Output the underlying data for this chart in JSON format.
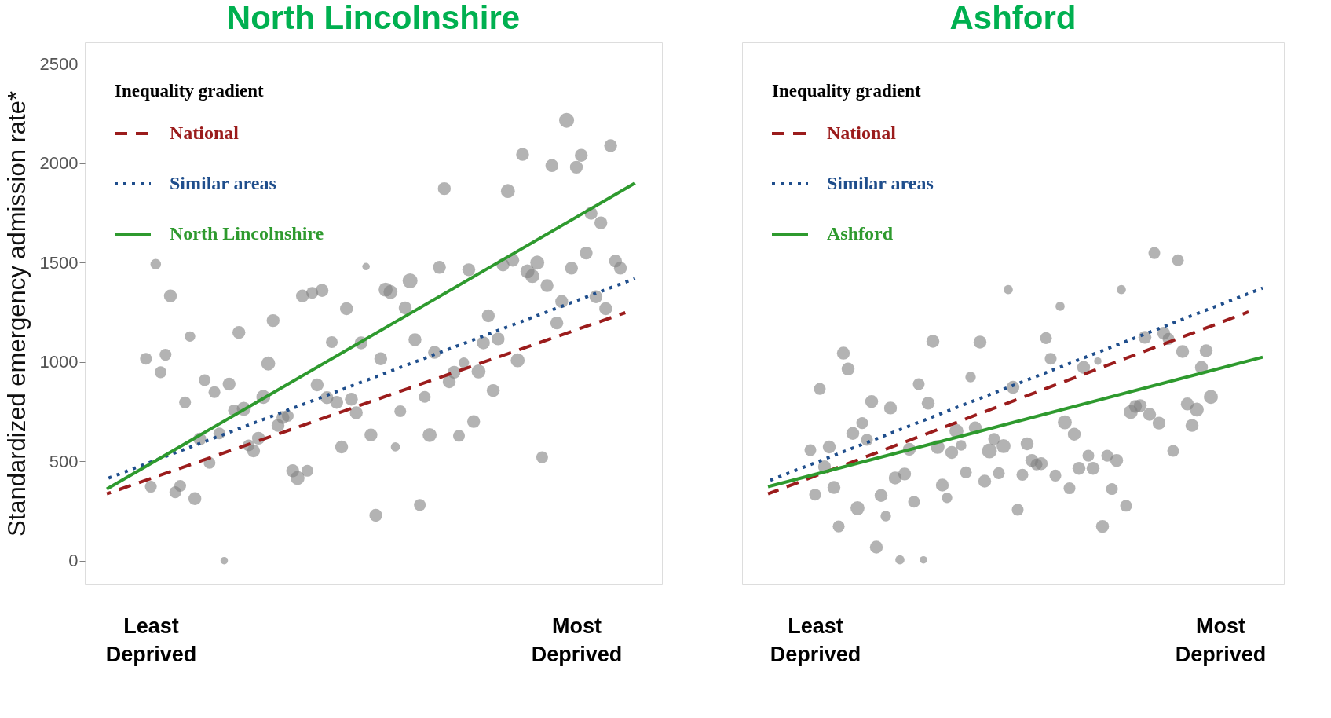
{
  "chart_data": [
    {
      "type": "bubble",
      "title": "North Lincolnshire",
      "ylabel": "Standardized emergency admission rate*",
      "legend_title": "Inequality gradient",
      "legend": "top left",
      "categories": [
        null,
        null,
        null,
        null,
        null,
        null,
        null,
        null,
        null,
        null,
        null,
        null,
        null,
        "Least Deprived",
        null,
        null,
        null,
        null,
        null,
        null,
        null,
        null,
        null,
        null,
        null,
        null,
        null,
        null,
        null,
        null,
        null,
        null,
        null,
        null,
        null,
        null,
        null,
        null,
        null,
        null,
        null,
        null,
        null,
        null,
        null,
        null,
        null,
        null,
        null,
        null,
        null,
        null,
        null,
        null,
        null,
        null,
        null,
        null,
        null,
        null,
        null,
        null,
        null,
        null,
        null,
        null,
        null,
        null,
        null,
        null,
        null,
        null,
        null,
        null,
        null,
        null,
        null,
        null,
        null,
        null,
        null,
        null,
        null,
        null,
        null,
        null,
        null,
        null,
        null,
        null,
        null,
        null,
        null,
        null,
        null,
        null,
        null,
        null,
        null,
        null,
        "Most Deprived",
        null,
        null,
        null,
        null,
        null,
        null,
        null,
        null,
        null,
        null,
        null,
        null,
        null,
        null,
        null,
        null,
        null
      ],
      "ylim": [
        -120,
        2608
      ],
      "yticks": [
        0,
        500,
        1000,
        1500,
        2000,
        2500
      ],
      "grid": false,
      "series": [
        {
          "type": "bubble",
          "color": "#808080",
          "marker": "circle",
          "values": [
            null,
            null,
            null,
            null,
            null,
            null,
            null,
            null,
            null,
            null,
            null,
            null,
            1016,
            372,
            1492,
            948,
            1036,
            1332,
            344,
            376,
            796,
            1128,
            312,
            612,
            908,
            492,
            848,
            640,
            0,
            888,
            756,
            1148,
            764,
            580,
            552,
            616,
            824,
            992,
            1208,
            680,
            720,
            728,
            452,
            416,
            1332,
            452,
            1348,
            884,
            1360,
            820,
            1100,
            796,
            572,
            1268,
            812,
            744,
            1096,
            1480,
            632,
            228,
            1016,
            1364,
            1352,
            572,
            752,
            1272,
            1408,
            1112,
            280,
            824,
            632,
            1048,
            1476,
            1872,
            900,
            948,
            628,
            996,
            1464,
            700,
            952,
            1096,
            1232,
            856,
            1116,
            1488,
            1860,
            1512,
            1008,
            2044,
            1456,
            1432,
            1500,
            520,
            1384,
            1988,
            1196,
            1304,
            2216,
            1472,
            1980,
            2040,
            1548,
            1748,
            1328,
            1700,
            1268,
            2088,
            1508,
            1472,
            null,
            null,
            null,
            null,
            null,
            null,
            null,
            null
          ],
          "sizes": [
            null,
            null,
            null,
            null,
            null,
            null,
            null,
            null,
            null,
            null,
            null,
            null,
            0.63,
            0.63,
            0.5,
            0.63,
            0.63,
            0.75,
            0.63,
            0.63,
            0.63,
            0.5,
            0.75,
            0.75,
            0.63,
            0.63,
            0.63,
            0.63,
            0.25,
            0.75,
            0.63,
            0.75,
            0.88,
            0.63,
            0.75,
            0.75,
            0.88,
            0.88,
            0.75,
            0.75,
            0.75,
            0.63,
            0.75,
            0.88,
            0.75,
            0.63,
            0.63,
            0.75,
            0.75,
            0.75,
            0.63,
            0.75,
            0.75,
            0.75,
            0.75,
            0.75,
            0.75,
            0.25,
            0.75,
            0.75,
            0.75,
            0.88,
            0.88,
            0.38,
            0.63,
            0.75,
            1,
            0.75,
            0.63,
            0.63,
            0.88,
            0.75,
            0.75,
            0.75,
            0.75,
            0.75,
            0.63,
            0.5,
            0.75,
            0.75,
            0.88,
            0.75,
            0.75,
            0.75,
            0.75,
            0.75,
            0.88,
            0.75,
            0.88,
            0.75,
            0.88,
            0.88,
            0.88,
            0.63,
            0.75,
            0.75,
            0.75,
            0.75,
            1,
            0.75,
            0.75,
            0.75,
            0.75,
            0.75,
            0.75,
            0.75,
            0.75,
            0.75,
            0.75,
            0.75,
            null,
            null,
            null,
            null,
            null,
            null,
            null,
            null
          ]
        },
        {
          "type": "line",
          "name": "National",
          "color": "#9b1c1c",
          "line_style": "dashed",
          "values": [
            null,
            null,
            null,
            null,
            336,
            null,
            null,
            null,
            null,
            null,
            null,
            null,
            null,
            null,
            null,
            null,
            null,
            null,
            null,
            null,
            null,
            null,
            null,
            null,
            null,
            null,
            null,
            null,
            null,
            null,
            null,
            null,
            null,
            null,
            null,
            null,
            null,
            null,
            null,
            null,
            null,
            null,
            null,
            null,
            null,
            null,
            null,
            null,
            null,
            null,
            null,
            null,
            null,
            null,
            null,
            null,
            null,
            null,
            null,
            null,
            null,
            null,
            null,
            null,
            null,
            null,
            null,
            null,
            null,
            null,
            null,
            null,
            null,
            null,
            null,
            null,
            null,
            null,
            null,
            null,
            null,
            null,
            null,
            null,
            null,
            null,
            null,
            null,
            null,
            null,
            null,
            null,
            null,
            null,
            null,
            null,
            null,
            null,
            null,
            null,
            null,
            null,
            null,
            null,
            null,
            null,
            null,
            null,
            null,
            null,
            1248,
            null,
            null,
            null,
            null,
            null,
            null,
            null
          ]
        },
        {
          "type": "line",
          "name": "Similar areas",
          "color": "#1f4e8c",
          "line_style": "dotted",
          "values": [
            null,
            null,
            null,
            null,
            412,
            null,
            null,
            null,
            null,
            null,
            null,
            null,
            null,
            null,
            null,
            null,
            null,
            null,
            null,
            null,
            null,
            null,
            null,
            null,
            null,
            null,
            null,
            null,
            null,
            null,
            null,
            null,
            null,
            null,
            null,
            null,
            null,
            null,
            null,
            null,
            null,
            null,
            null,
            null,
            null,
            null,
            null,
            null,
            null,
            null,
            null,
            null,
            null,
            null,
            null,
            null,
            null,
            null,
            null,
            null,
            null,
            null,
            null,
            null,
            null,
            null,
            null,
            null,
            null,
            null,
            null,
            null,
            null,
            null,
            null,
            null,
            null,
            null,
            null,
            null,
            null,
            null,
            null,
            null,
            null,
            null,
            null,
            null,
            null,
            null,
            null,
            null,
            null,
            null,
            null,
            null,
            null,
            null,
            null,
            null,
            null,
            null,
            null,
            null,
            null,
            null,
            null,
            null,
            null,
            null,
            null,
            null,
            1420,
            null,
            null,
            null,
            null,
            null
          ]
        },
        {
          "type": "line",
          "name": "North Lincolnshire",
          "color": "#2e9a2e",
          "line_style": "solid",
          "values": [
            null,
            null,
            null,
            null,
            360,
            null,
            null,
            null,
            null,
            null,
            null,
            null,
            null,
            null,
            null,
            null,
            null,
            null,
            null,
            null,
            null,
            null,
            null,
            null,
            null,
            null,
            null,
            null,
            null,
            null,
            null,
            null,
            null,
            null,
            null,
            null,
            null,
            null,
            null,
            null,
            null,
            null,
            null,
            null,
            null,
            null,
            null,
            null,
            null,
            null,
            null,
            null,
            null,
            null,
            null,
            null,
            null,
            null,
            null,
            null,
            null,
            null,
            null,
            null,
            null,
            null,
            null,
            null,
            null,
            null,
            null,
            null,
            null,
            null,
            null,
            null,
            null,
            null,
            null,
            null,
            null,
            null,
            null,
            null,
            null,
            null,
            null,
            null,
            null,
            null,
            null,
            null,
            null,
            null,
            null,
            null,
            null,
            null,
            null,
            null,
            null,
            null,
            null,
            null,
            null,
            null,
            null,
            null,
            null,
            null,
            null,
            null,
            1900,
            null,
            null,
            null,
            null,
            null
          ]
        }
      ]
    },
    {
      "type": "bubble",
      "title": "Ashford",
      "legend_title": "Inequality gradient",
      "legend": "top left",
      "tick_labels": "x",
      "categories": [
        null,
        null,
        null,
        null,
        null,
        null,
        null,
        null,
        null,
        null,
        null,
        null,
        null,
        null,
        null,
        "Least Deprived",
        null,
        null,
        null,
        null,
        null,
        null,
        null,
        null,
        null,
        null,
        null,
        null,
        null,
        null,
        null,
        null,
        null,
        null,
        null,
        null,
        null,
        null,
        null,
        null,
        null,
        null,
        null,
        null,
        null,
        null,
        null,
        null,
        null,
        null,
        null,
        null,
        null,
        null,
        null,
        null,
        null,
        null,
        null,
        null,
        null,
        null,
        null,
        null,
        null,
        null,
        null,
        null,
        null,
        null,
        null,
        null,
        null,
        null,
        null,
        null,
        null,
        null,
        null,
        null,
        null,
        null,
        null,
        null,
        null,
        null,
        null,
        null,
        null,
        null,
        null,
        null,
        null,
        null,
        null,
        null,
        null,
        null,
        null,
        null,
        null,
        "Most Deprived",
        null,
        null,
        null,
        null,
        null,
        null,
        null,
        null,
        null,
        null,
        null,
        null,
        null
      ],
      "ylim": [
        -120,
        2608
      ],
      "grid": false,
      "series": [
        {
          "type": "bubble",
          "color": "#808080",
          "marker": "circle",
          "values": [
            null,
            null,
            null,
            null,
            null,
            null,
            null,
            null,
            null,
            null,
            null,
            null,
            null,
            null,
            556,
            332,
            864,
            472,
            572,
            368,
            172,
            1044,
            964,
            640,
            264,
            692,
            608,
            800,
            68,
            328,
            224,
            768,
            416,
            4,
            436,
            560,
            296,
            888,
            4,
            792,
            1104,
            572,
            380,
            316,
            544,
            652,
            580,
            444,
            924,
            668,
            1100,
            400,
            552,
            612,
            440,
            576,
            1364,
            872,
            256,
            432,
            588,
            504,
            484,
            488,
            1120,
            1016,
            428,
            1280,
            696,
            364,
            636,
            464,
            972,
            528,
            464,
            1004,
            172,
            528,
            360,
            504,
            1364,
            276,
            748,
            776,
            780,
            1124,
            736,
            1548,
            692,
            1144,
            1116,
            552,
            1512,
            1052,
            788,
            680,
            760,
            972,
            1056,
            824,
            null,
            null,
            null,
            null,
            null,
            null,
            null,
            null,
            null,
            null,
            null,
            null,
            null,
            null,
            null
          ],
          "sizes": [
            null,
            null,
            null,
            null,
            null,
            null,
            null,
            null,
            null,
            null,
            null,
            null,
            null,
            null,
            0.63,
            0.63,
            0.63,
            0.75,
            0.75,
            0.75,
            0.63,
            0.75,
            0.75,
            0.75,
            0.88,
            0.63,
            0.63,
            0.75,
            0.75,
            0.75,
            0.5,
            0.75,
            0.75,
            0.38,
            0.75,
            0.75,
            0.63,
            0.63,
            0.25,
            0.75,
            0.75,
            0.88,
            0.75,
            0.5,
            0.75,
            0.88,
            0.5,
            0.63,
            0.5,
            0.75,
            0.75,
            0.75,
            1,
            0.63,
            0.63,
            0.88,
            0.38,
            0.75,
            0.63,
            0.63,
            0.75,
            0.75,
            0.63,
            0.75,
            0.63,
            0.63,
            0.63,
            0.38,
            0.88,
            0.63,
            0.75,
            0.75,
            0.75,
            0.63,
            0.75,
            0.25,
            0.75,
            0.63,
            0.63,
            0.75,
            0.38,
            0.63,
            0.88,
            0.75,
            0.75,
            0.75,
            0.75,
            0.63,
            0.75,
            0.75,
            0.63,
            0.63,
            0.63,
            0.75,
            0.75,
            0.75,
            0.88,
            0.75,
            0.75,
            0.88,
            null,
            null,
            null,
            null,
            null,
            null,
            null,
            null,
            null,
            null,
            null,
            null,
            null,
            null,
            null
          ]
        },
        {
          "type": "line",
          "name": "National",
          "color": "#9b1c1c",
          "line_style": "dashed",
          "values": [
            null,
            null,
            null,
            null,
            null,
            336,
            null,
            null,
            null,
            null,
            null,
            null,
            null,
            null,
            null,
            null,
            null,
            null,
            null,
            null,
            null,
            null,
            null,
            null,
            null,
            null,
            null,
            null,
            null,
            null,
            null,
            null,
            null,
            null,
            null,
            null,
            null,
            null,
            null,
            null,
            null,
            null,
            null,
            null,
            null,
            null,
            null,
            null,
            null,
            null,
            null,
            null,
            null,
            null,
            null,
            null,
            null,
            null,
            null,
            null,
            null,
            null,
            null,
            null,
            null,
            null,
            null,
            null,
            null,
            null,
            null,
            null,
            null,
            null,
            null,
            null,
            null,
            null,
            null,
            null,
            null,
            null,
            null,
            null,
            null,
            null,
            null,
            null,
            null,
            null,
            null,
            null,
            null,
            null,
            null,
            null,
            null,
            null,
            null,
            null,
            null,
            null,
            null,
            null,
            null,
            null,
            null,
            1252,
            null,
            null,
            null,
            null,
            null,
            null,
            null
          ]
        },
        {
          "type": "line",
          "name": "Similar areas",
          "color": "#1f4e8c",
          "line_style": "dotted",
          "values": [
            null,
            null,
            null,
            null,
            null,
            400,
            null,
            null,
            null,
            null,
            null,
            null,
            null,
            null,
            null,
            null,
            null,
            null,
            null,
            null,
            null,
            null,
            null,
            null,
            null,
            null,
            null,
            null,
            null,
            null,
            null,
            null,
            null,
            null,
            null,
            null,
            null,
            null,
            null,
            null,
            null,
            null,
            null,
            null,
            null,
            null,
            null,
            null,
            null,
            null,
            null,
            null,
            null,
            null,
            null,
            null,
            null,
            null,
            null,
            null,
            null,
            null,
            null,
            null,
            null,
            null,
            null,
            null,
            null,
            null,
            null,
            null,
            null,
            null,
            null,
            null,
            null,
            null,
            null,
            null,
            null,
            null,
            null,
            null,
            null,
            null,
            null,
            null,
            null,
            null,
            null,
            null,
            null,
            null,
            null,
            null,
            null,
            null,
            null,
            null,
            null,
            null,
            null,
            null,
            null,
            null,
            null,
            null,
            null,
            null,
            1372,
            null,
            null,
            null,
            null
          ]
        },
        {
          "type": "line",
          "name": "Ashford",
          "color": "#2e9a2e",
          "line_style": "solid",
          "values": [
            null,
            null,
            null,
            null,
            null,
            372,
            null,
            null,
            null,
            null,
            null,
            null,
            null,
            null,
            null,
            null,
            null,
            null,
            null,
            null,
            null,
            null,
            null,
            null,
            null,
            null,
            null,
            null,
            null,
            null,
            null,
            null,
            null,
            null,
            null,
            null,
            null,
            null,
            null,
            null,
            null,
            null,
            null,
            null,
            null,
            null,
            null,
            null,
            null,
            null,
            null,
            null,
            null,
            null,
            null,
            null,
            null,
            null,
            null,
            null,
            null,
            null,
            null,
            null,
            null,
            null,
            null,
            null,
            null,
            null,
            null,
            null,
            null,
            null,
            null,
            null,
            null,
            null,
            null,
            null,
            null,
            null,
            null,
            null,
            null,
            null,
            null,
            null,
            null,
            null,
            null,
            null,
            null,
            null,
            null,
            null,
            null,
            null,
            null,
            null,
            null,
            null,
            null,
            null,
            null,
            null,
            null,
            null,
            null,
            null,
            1024,
            null,
            null,
            null,
            null
          ]
        }
      ]
    }
  ]
}
